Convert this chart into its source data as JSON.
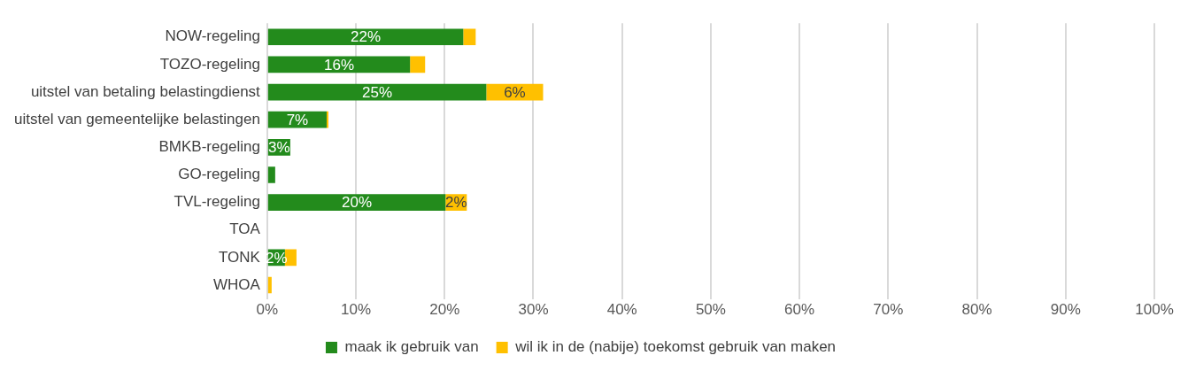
{
  "chart_data": {
    "type": "bar",
    "orientation": "horizontal",
    "stacked": true,
    "categories": [
      "NOW-regeling",
      "TOZO-regeling",
      "uitstel van betaling belastingdienst",
      "uitstel van gemeentelijke belastingen",
      "BMKB-regeling",
      "GO-regeling",
      "TVL-regeling",
      "TOA",
      "TONK",
      "WHOA"
    ],
    "series": [
      {
        "name": "maak ik gebruik van",
        "color": "#238b1c",
        "values": [
          22.1,
          16.1,
          24.7,
          6.7,
          2.6,
          0.9,
          20.1,
          0,
          2.0,
          0
        ],
        "value_labels": [
          "22%",
          "16%",
          "25%",
          "7%",
          "3%",
          null,
          "20%",
          null,
          "2%",
          null
        ]
      },
      {
        "name": "wil ik in de (nabije) toekomst gebruik van maken",
        "color": "#ffc000",
        "values": [
          1.4,
          1.7,
          6.4,
          0.2,
          0,
          0,
          2.4,
          0,
          1.3,
          0.5
        ],
        "value_labels": [
          null,
          null,
          "6%",
          null,
          null,
          null,
          "2%",
          null,
          null,
          null
        ]
      }
    ],
    "xlim": [
      0,
      100
    ],
    "xticks": [
      {
        "value": 0,
        "label": "0%"
      },
      {
        "value": 10,
        "label": "10%"
      },
      {
        "value": 20,
        "label": "20%"
      },
      {
        "value": 30,
        "label": "30%"
      },
      {
        "value": 40,
        "label": "40%"
      },
      {
        "value": 50,
        "label": "50%"
      },
      {
        "value": 60,
        "label": "60%"
      },
      {
        "value": 70,
        "label": "70%"
      },
      {
        "value": 80,
        "label": "80%"
      },
      {
        "value": 90,
        "label": "90%"
      },
      {
        "value": 100,
        "label": "100%"
      }
    ],
    "grid": "x",
    "legend": "bottom"
  }
}
